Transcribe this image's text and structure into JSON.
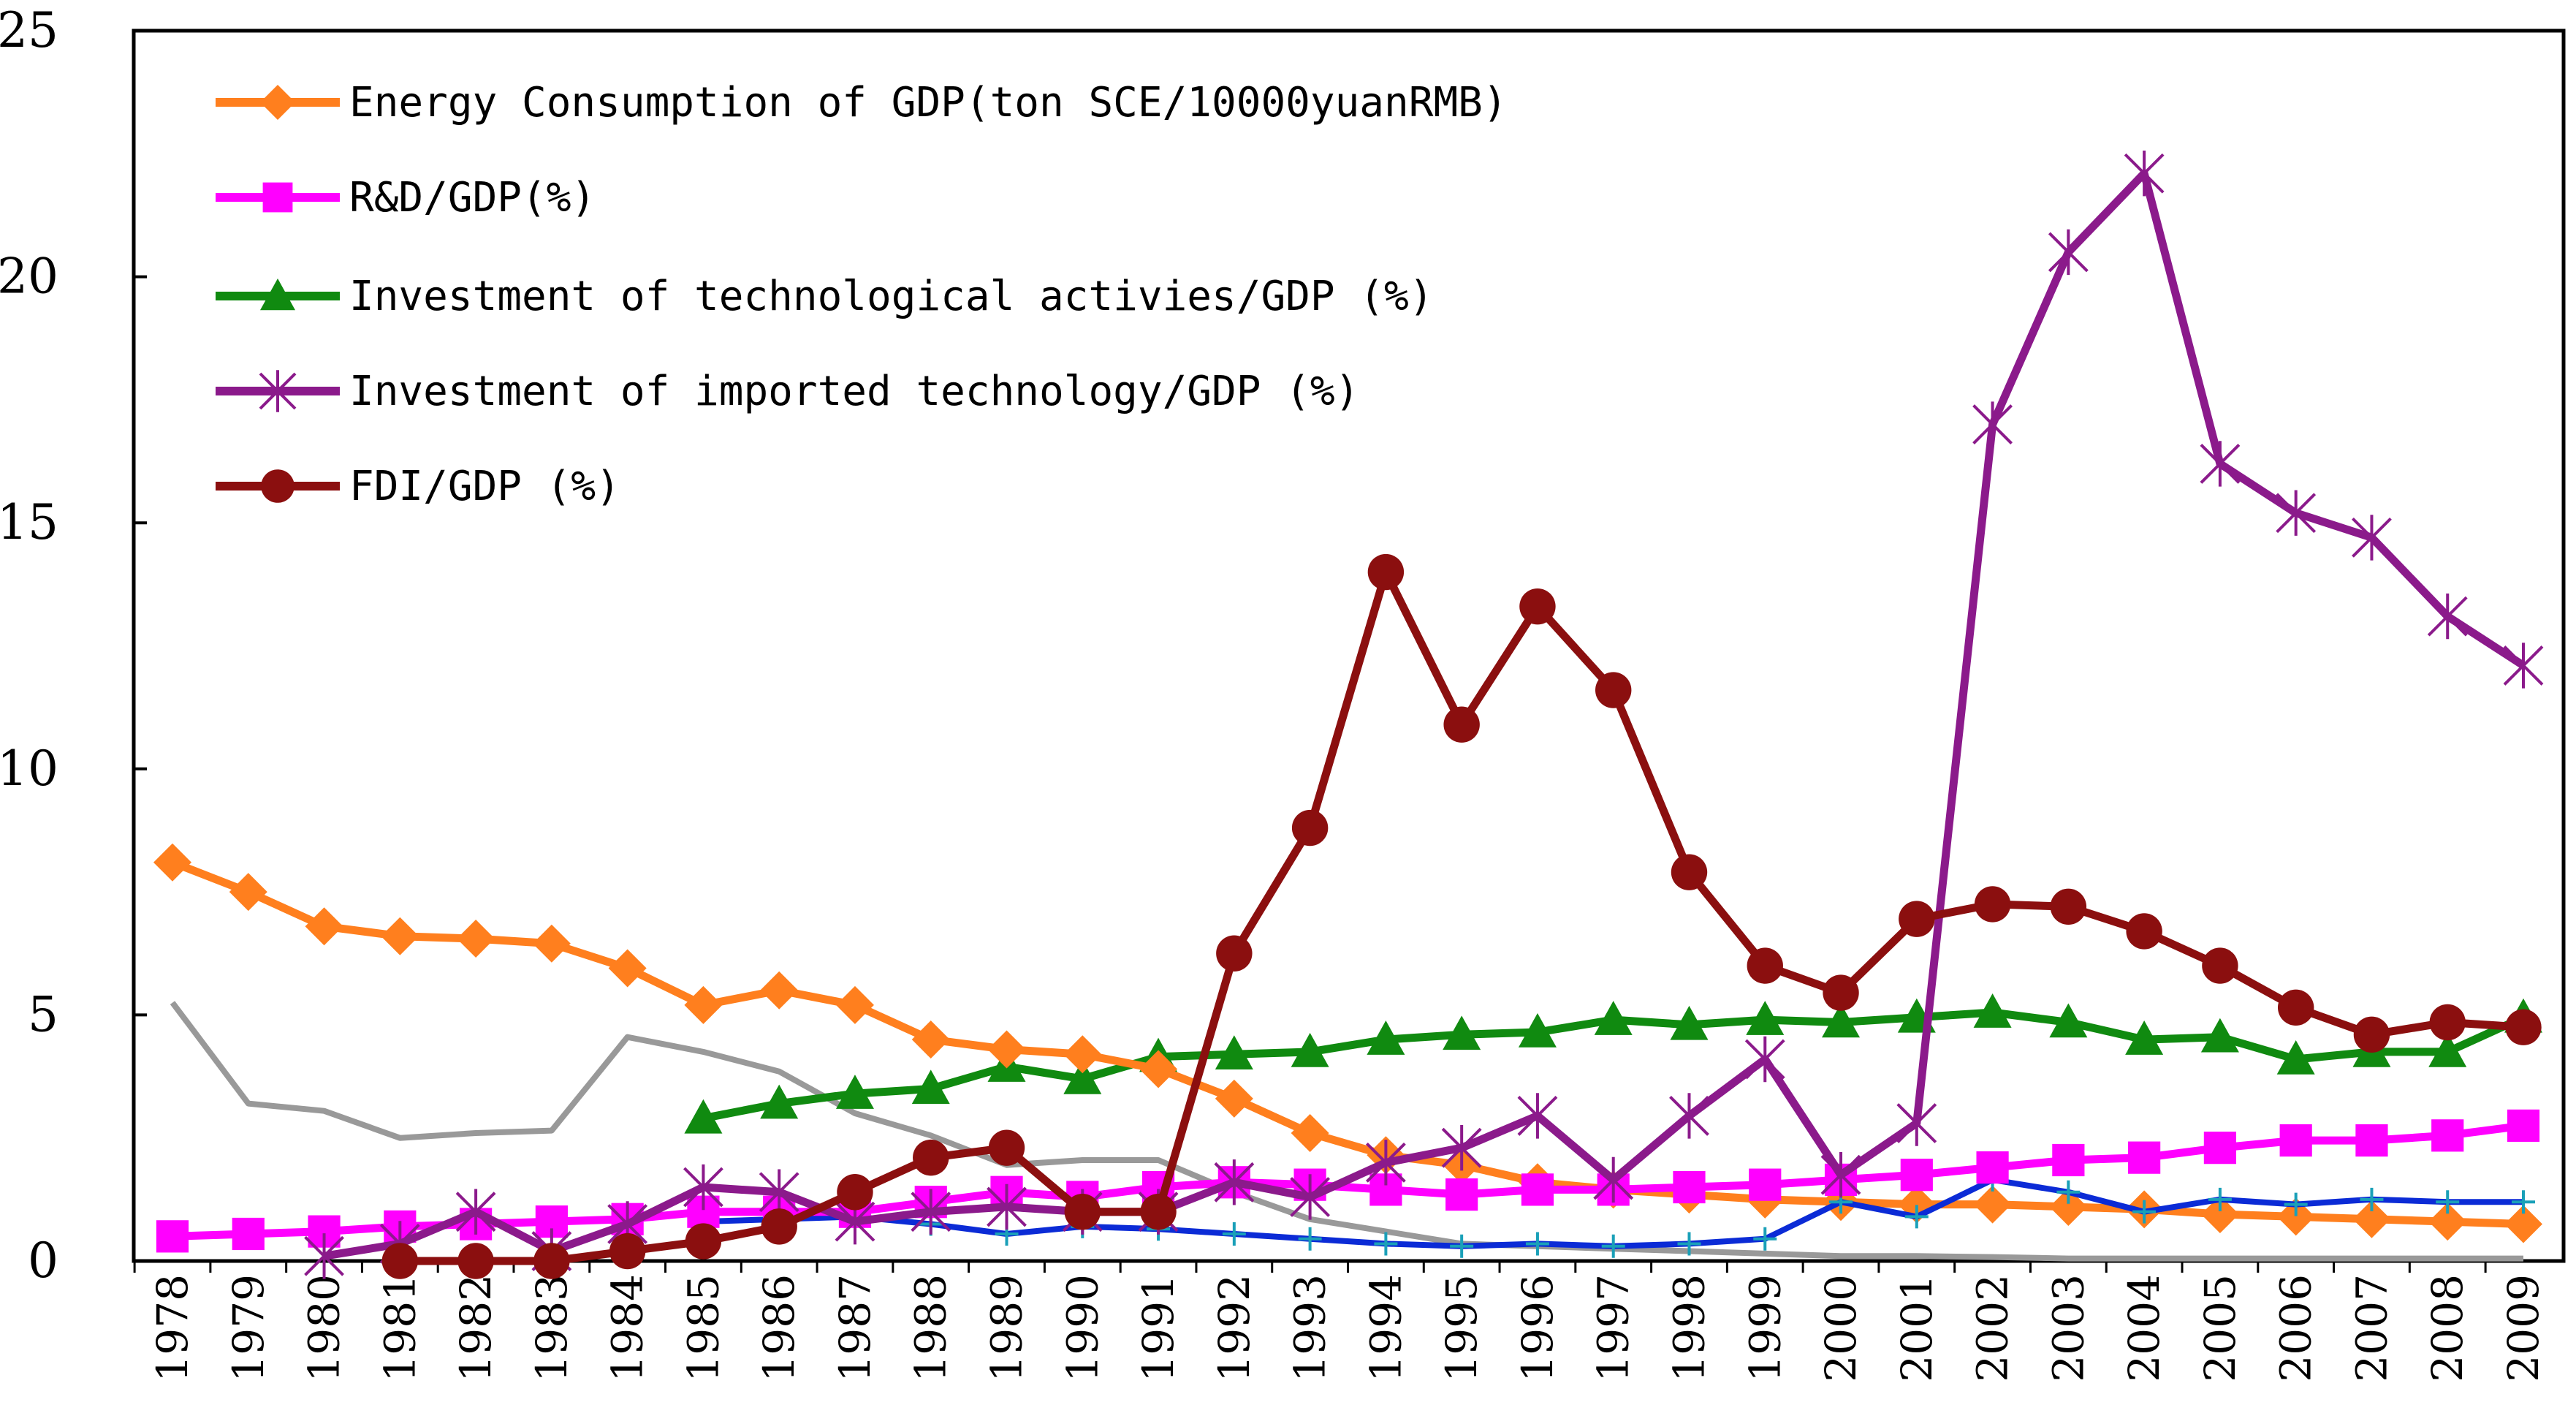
{
  "chart_data": {
    "type": "line",
    "title": "",
    "xlabel": "",
    "ylabel": "",
    "ylim": [
      0,
      25
    ],
    "yticks": [
      "0",
      "5",
      "10",
      "15",
      "20",
      "25"
    ],
    "x": [
      "1978",
      "1979",
      "1980",
      "1981",
      "1982",
      "1983",
      "1984",
      "1985",
      "1986",
      "1987",
      "1988",
      "1989",
      "1990",
      "1991",
      "1992",
      "1993",
      "1994",
      "1995",
      "1996",
      "1997",
      "1998",
      "1999",
      "2000",
      "2001",
      "2002",
      "2003",
      "2004",
      "2005",
      "2006",
      "2007",
      "2008",
      "2009"
    ],
    "legend_position": "top-left",
    "series": [
      {
        "name": "Energy Consumption of GDP(ton SCE/10000yuanRMB)",
        "color": "#ff7f1e",
        "marker": "diamond",
        "in_legend": true,
        "values": [
          8.1,
          7.5,
          6.8,
          6.6,
          6.55,
          6.45,
          5.95,
          5.2,
          5.5,
          5.2,
          4.5,
          4.3,
          4.2,
          3.9,
          3.3,
          2.6,
          2.15,
          1.95,
          1.6,
          1.45,
          1.35,
          1.25,
          1.2,
          1.15,
          1.15,
          1.1,
          1.05,
          0.95,
          0.9,
          0.85,
          0.8,
          0.75
        ]
      },
      {
        "name": "R&D/GDP(%)",
        "color": "#ff00ff",
        "marker": "square",
        "in_legend": true,
        "values": [
          0.5,
          0.55,
          0.6,
          0.7,
          0.75,
          0.8,
          0.85,
          1.0,
          1.0,
          1.0,
          1.2,
          1.4,
          1.3,
          1.5,
          1.6,
          1.55,
          1.45,
          1.35,
          1.45,
          1.45,
          1.5,
          1.55,
          1.65,
          1.75,
          1.9,
          2.05,
          2.1,
          2.3,
          2.45,
          2.45,
          2.55,
          2.75
        ]
      },
      {
        "name": "Investment of technological activies/GDP (%)",
        "color": "#108a10",
        "marker": "triangle",
        "in_legend": true,
        "values": [
          null,
          null,
          null,
          null,
          null,
          null,
          null,
          2.9,
          3.2,
          3.4,
          3.5,
          3.95,
          3.7,
          4.15,
          4.2,
          4.25,
          4.5,
          4.6,
          4.65,
          4.9,
          4.8,
          4.9,
          4.85,
          4.95,
          5.05,
          4.85,
          4.5,
          4.55,
          4.1,
          4.25,
          4.25,
          4.95
        ]
      },
      {
        "name": "Investment of imported technology/GDP (%)",
        "color": "#8b1a8b",
        "marker": "star",
        "in_legend": true,
        "values": [
          null,
          null,
          0.1,
          0.35,
          1.0,
          0.2,
          0.75,
          1.5,
          1.4,
          0.8,
          1.0,
          1.1,
          1.0,
          1.0,
          1.6,
          1.3,
          2.0,
          2.3,
          2.95,
          1.65,
          2.95,
          4.1,
          1.75,
          2.8,
          17.0,
          20.5,
          22.1,
          16.2,
          15.2,
          14.7,
          13.1,
          12.1
        ]
      },
      {
        "name": "FDI/GDP (%)",
        "color": "#8b0f0f",
        "marker": "circle",
        "in_legend": true,
        "values": [
          null,
          null,
          null,
          0.0,
          0.0,
          0.0,
          0.2,
          0.4,
          0.7,
          1.4,
          2.1,
          2.3,
          1.0,
          1.0,
          6.25,
          8.8,
          14.0,
          10.9,
          13.3,
          11.6,
          7.9,
          6.0,
          5.45,
          6.95,
          7.25,
          7.2,
          6.7,
          6.0,
          5.15,
          4.6,
          4.85,
          4.75
        ]
      },
      {
        "name": "",
        "color": "#999999",
        "marker": "none",
        "in_legend": false,
        "values": [
          5.25,
          3.2,
          3.05,
          2.5,
          2.6,
          2.65,
          4.55,
          4.25,
          3.85,
          3.0,
          2.55,
          1.95,
          2.05,
          2.05,
          1.4,
          0.85,
          0.6,
          0.35,
          0.3,
          0.25,
          0.2,
          0.15,
          0.1,
          0.1,
          0.08,
          0.05,
          0.05,
          0.05,
          0.05,
          0.05,
          0.05,
          0.05
        ]
      },
      {
        "name": "",
        "color": "#0b2bd6",
        "marker": "plus",
        "in_legend": false,
        "values": [
          null,
          null,
          null,
          null,
          null,
          null,
          null,
          0.8,
          0.85,
          0.9,
          0.75,
          0.55,
          0.7,
          0.65,
          0.55,
          0.45,
          0.35,
          0.3,
          0.35,
          0.3,
          0.35,
          0.45,
          1.2,
          0.9,
          1.65,
          1.4,
          1.0,
          1.25,
          1.15,
          1.25,
          1.2,
          1.2
        ]
      }
    ]
  }
}
